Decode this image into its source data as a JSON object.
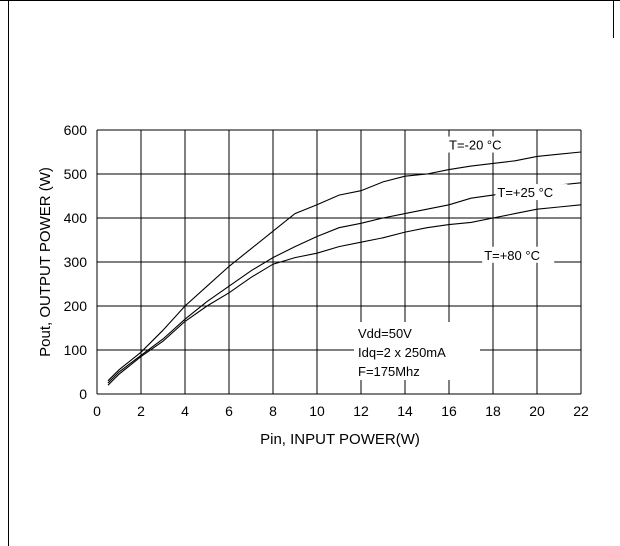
{
  "chart_data": {
    "type": "line",
    "title": "",
    "xlabel": "Pin, INPUT POWER(W)",
    "ylabel": "Pout, OUTPUT POWER (W)",
    "xlim": [
      0,
      22
    ],
    "ylim": [
      0,
      600
    ],
    "xticks": [
      0,
      2,
      4,
      6,
      8,
      10,
      12,
      14,
      16,
      18,
      20,
      22
    ],
    "yticks": [
      0,
      100,
      200,
      300,
      400,
      500,
      600
    ],
    "grid": true,
    "series": [
      {
        "name": "T=-20 °C",
        "x": [
          0.5,
          1,
          2,
          3,
          4,
          5,
          6,
          7,
          8,
          9,
          10,
          11,
          12,
          13,
          14,
          15,
          16,
          17,
          18,
          19,
          20,
          21,
          22
        ],
        "y": [
          30,
          55,
          95,
          145,
          200,
          245,
          290,
          330,
          370,
          410,
          430,
          452,
          462,
          482,
          495,
          500,
          510,
          518,
          524,
          530,
          540,
          545,
          550
        ]
      },
      {
        "name": "T=+25 °C",
        "x": [
          0.5,
          1,
          2,
          3,
          4,
          5,
          6,
          7,
          8,
          9,
          10,
          11,
          12,
          13,
          14,
          15,
          16,
          17,
          18,
          19,
          20,
          21,
          22
        ],
        "y": [
          25,
          50,
          88,
          125,
          170,
          210,
          245,
          280,
          310,
          335,
          358,
          378,
          388,
          400,
          410,
          420,
          430,
          445,
          452,
          460,
          470,
          475,
          480
        ]
      },
      {
        "name": "T=+80 °C",
        "x": [
          0.5,
          1,
          2,
          3,
          4,
          5,
          6,
          7,
          8,
          9,
          10,
          11,
          12,
          13,
          14,
          15,
          16,
          17,
          18,
          19,
          20,
          21,
          22
        ],
        "y": [
          20,
          45,
          85,
          120,
          165,
          200,
          230,
          265,
          295,
          310,
          320,
          335,
          345,
          355,
          368,
          378,
          385,
          390,
          400,
          410,
          420,
          425,
          430
        ]
      }
    ],
    "annotations": [
      "Vdd=50V",
      "Idq=2 x 250mA",
      "F=175Mhz"
    ]
  }
}
